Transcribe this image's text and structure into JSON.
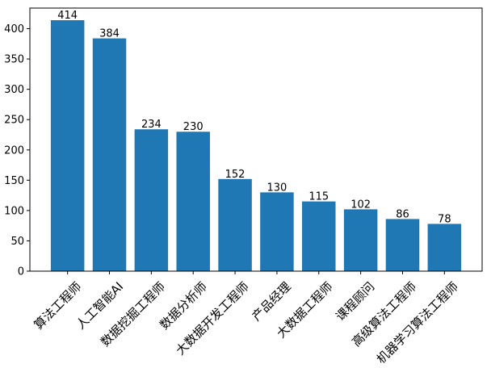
{
  "chart_data": {
    "type": "bar",
    "categories": [
      "算法工程师",
      "人工智能AI",
      "数据挖掘工程师",
      "数据分析师",
      "大数据开发工程师",
      "产品经理",
      "大数据工程师",
      "课程顾问",
      "高级算法工程师",
      "机器学习算法工程师"
    ],
    "values": [
      414,
      384,
      234,
      230,
      152,
      130,
      115,
      102,
      86,
      78
    ],
    "value_labels": [
      "414",
      "384",
      "234",
      "230",
      "152",
      "130",
      "115",
      "102",
      "86",
      "78"
    ],
    "yticks": [
      "0",
      "50",
      "100",
      "150",
      "200",
      "250",
      "300",
      "350",
      "400"
    ],
    "ylim": [
      0,
      434
    ],
    "title": "",
    "xlabel": "",
    "ylabel": "",
    "grid": false,
    "bar_color": "#1f77b4"
  }
}
